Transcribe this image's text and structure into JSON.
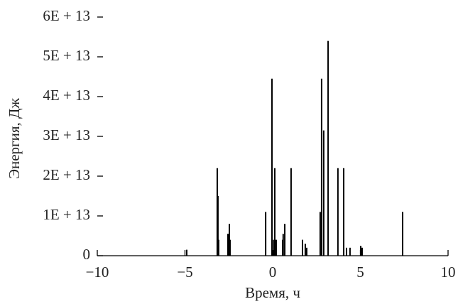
{
  "chart_data": {
    "type": "stem",
    "xlabel": "Время, ч",
    "ylabel": "Энергия, Дж",
    "xlim": [
      -10,
      10
    ],
    "ylim": [
      0,
      60000000000000.0
    ],
    "xticks": [
      {
        "value": -10,
        "label": "−10"
      },
      {
        "value": -5,
        "label": "−5"
      },
      0,
      5,
      10
    ],
    "yticks": [
      0,
      {
        "value": 10000000000000.0,
        "label": "1E + 13"
      },
      {
        "value": 20000000000000.0,
        "label": "2E + 13"
      },
      {
        "value": 30000000000000.0,
        "label": "3E + 13"
      },
      {
        "value": 40000000000000.0,
        "label": "4E + 13"
      },
      {
        "value": 50000000000000.0,
        "label": "5E + 13"
      },
      {
        "value": 60000000000000.0,
        "label": "6E + 13"
      }
    ],
    "color": "#000000",
    "x": [
      -4.9,
      -3.16,
      -3.12,
      -3.08,
      -2.55,
      -2.47,
      -2.43,
      -0.4,
      -0.04,
      0.06,
      0.12,
      0.2,
      0.57,
      0.6,
      0.69,
      1.05,
      1.7,
      1.86,
      1.94,
      2.71,
      2.79,
      2.91,
      3.16,
      3.72,
      4.05,
      4.21,
      4.41,
      5.02,
      5.1,
      7.41
    ],
    "values": [
      1500000000000.0,
      22000000000000.0,
      15000000000000.0,
      4000000000000.0,
      5500000000000.0,
      8000000000000.0,
      4000000000000.0,
      11000000000000.0,
      44500000000000.0,
      4000000000000.0,
      22000000000000.0,
      4000000000000.0,
      4000000000000.0,
      5500000000000.0,
      8000000000000.0,
      22000000000000.0,
      4000000000000.0,
      3000000000000.0,
      2000000000000.0,
      11000000000000.0,
      44500000000000.0,
      31500000000000.0,
      54000000000000.0,
      22000000000000.0,
      22000000000000.0,
      2000000000000.0,
      2000000000000.0,
      2500000000000.0,
      2000000000000.0,
      11000000000000.0
    ]
  }
}
